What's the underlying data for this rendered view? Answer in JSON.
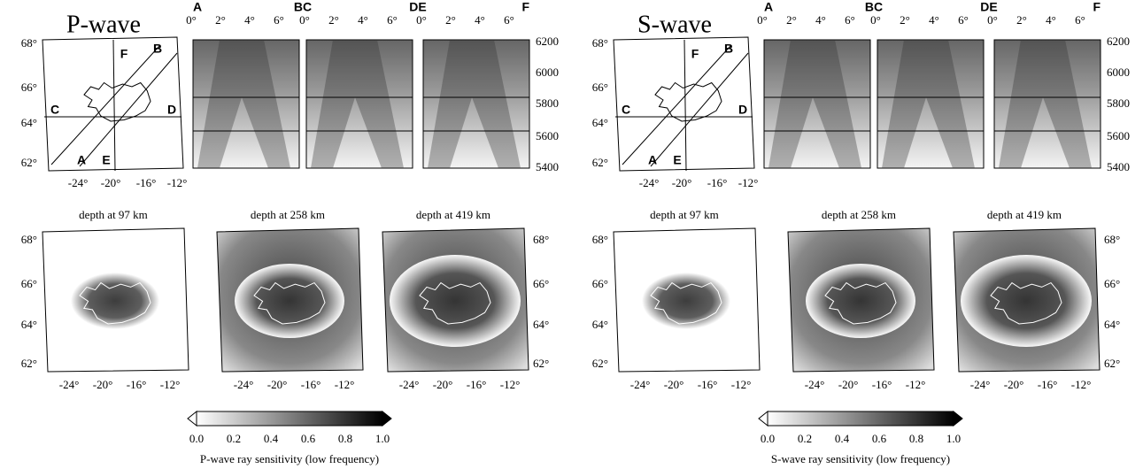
{
  "wave_panels": [
    {
      "title": "P-wave",
      "colorbar_label": "P-wave ray sensitivity (low frequency)"
    },
    {
      "title": "S-wave",
      "colorbar_label": "S-wave ray sensitivity (low frequency)"
    }
  ],
  "lat_ticks": [
    "68°",
    "66°",
    "64°",
    "62°"
  ],
  "lon_ticks": [
    "-24°",
    "-20°",
    "-16°",
    "-12°"
  ],
  "map_letters": [
    "A",
    "B",
    "C",
    "D",
    "E",
    "F"
  ],
  "section_labels": [
    "A",
    "BC",
    "DE",
    "F"
  ],
  "section_x_ticks": [
    "0°",
    "2°",
    "4°",
    "6°"
  ],
  "radius_ticks": [
    "6200",
    "6000",
    "5800",
    "5600",
    "5400"
  ],
  "depth_titles": [
    "depth at 97 km",
    "depth at 258 km",
    "depth at 419 km"
  ],
  "colorbar_ticks": [
    "0.0",
    "0.2",
    "0.4",
    "0.6",
    "0.8",
    "1.0"
  ]
}
